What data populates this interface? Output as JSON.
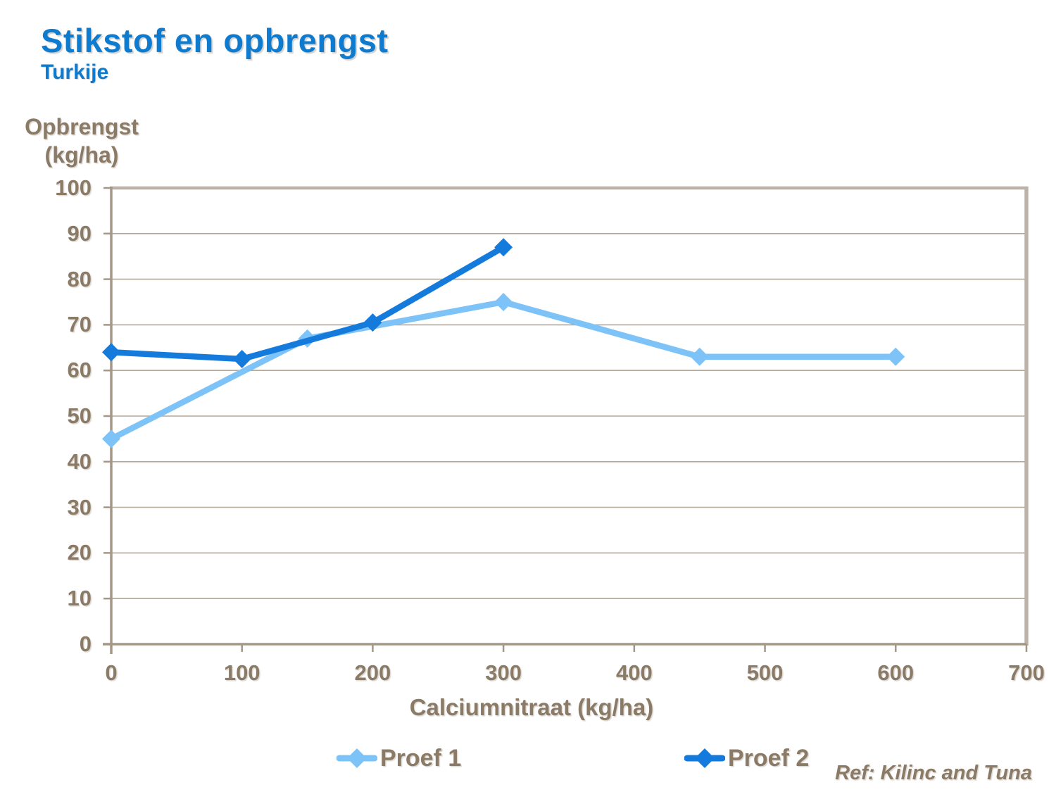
{
  "header": {
    "title": "Stikstof en opbrengst",
    "subtitle": "Turkije"
  },
  "axes": {
    "y_title_line1": "Opbrengst",
    "y_title_line2": "(kg/ha)",
    "x_title": "Calciumnitraat (kg/ha)"
  },
  "ref_text": "Ref: Kilinc and Tuna",
  "colors": {
    "title_blue": "#0e7bce",
    "text_brown": "#8a7a66",
    "gridline": "#b3a79a",
    "frame_light": "#bdb2a7",
    "frame_dark": "#a49787",
    "series1": "#7dc3f8",
    "series2": "#147bdd",
    "background": "#ffffff"
  },
  "chart_data": {
    "type": "line",
    "title": "Stikstof en opbrengst",
    "subtitle": "Turkije",
    "xlabel": "Calciumnitraat (kg/ha)",
    "ylabel": "Opbrengst (kg/ha)",
    "xlim": [
      0,
      700
    ],
    "ylim": [
      0,
      100
    ],
    "x_ticks": [
      0,
      100,
      200,
      300,
      400,
      500,
      600,
      700
    ],
    "y_ticks": [
      0,
      10,
      20,
      30,
      40,
      50,
      60,
      70,
      80,
      90,
      100
    ],
    "grid": true,
    "legend_position": "bottom",
    "marker": "diamond",
    "series": [
      {
        "name": "Proef 1",
        "color": "#7dc3f8",
        "points": [
          {
            "x": 0,
            "y": 45
          },
          {
            "x": 150,
            "y": 67
          },
          {
            "x": 300,
            "y": 75
          },
          {
            "x": 450,
            "y": 63
          },
          {
            "x": 600,
            "y": 63
          }
        ]
      },
      {
        "name": "Proef 2",
        "color": "#147bdd",
        "points": [
          {
            "x": 0,
            "y": 64
          },
          {
            "x": 100,
            "y": 62.5
          },
          {
            "x": 200,
            "y": 70.5
          },
          {
            "x": 300,
            "y": 87
          }
        ]
      }
    ]
  }
}
